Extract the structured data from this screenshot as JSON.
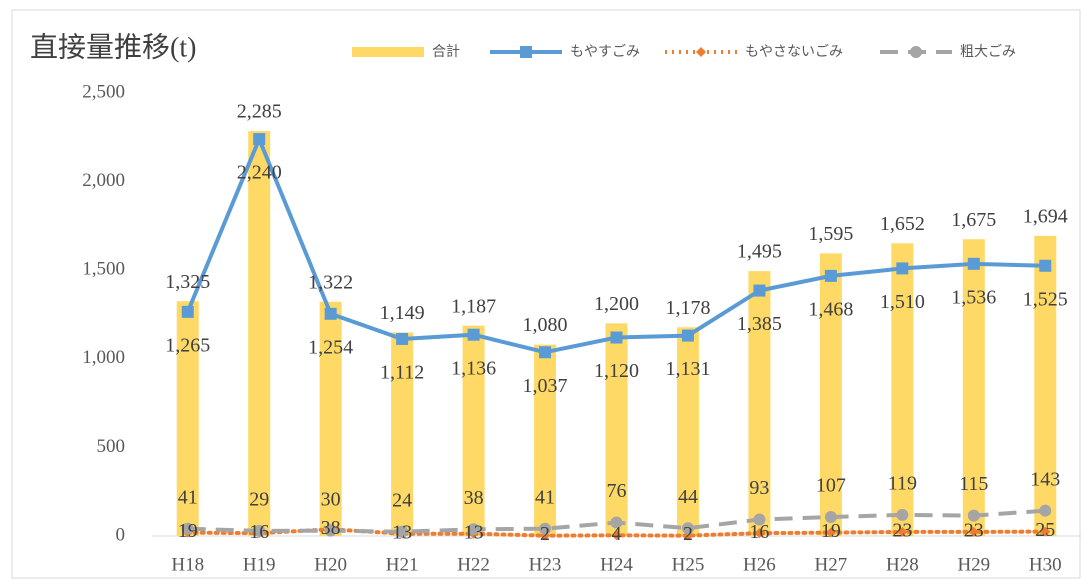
{
  "chart_data": {
    "type": "combo",
    "title": "直接量推移(t)",
    "categories": [
      "H18",
      "H19",
      "H20",
      "H21",
      "H22",
      "H23",
      "H24",
      "H25",
      "H26",
      "H27",
      "H28",
      "H29",
      "H30"
    ],
    "series": [
      {
        "name": "合計",
        "type": "bar",
        "color": "#FFD966",
        "values": [
          1325,
          2285,
          1322,
          1149,
          1187,
          1080,
          1200,
          1178,
          1495,
          1595,
          1652,
          1675,
          1694
        ],
        "value_labels": [
          "1,325",
          "2,285",
          "1,322",
          "1,149",
          "1,187",
          "1,080",
          "1,200",
          "1,178",
          "1,495",
          "1,595",
          "1,652",
          "1,675",
          "1,694"
        ]
      },
      {
        "name": "もやすごみ",
        "type": "line",
        "color": "#5B9BD5",
        "dash": "solid",
        "marker": "square",
        "values": [
          1265,
          2240,
          1254,
          1112,
          1136,
          1037,
          1120,
          1131,
          1385,
          1468,
          1510,
          1536,
          1525
        ],
        "value_labels": [
          "1,265",
          "2,240",
          "1,254",
          "1,112",
          "1,136",
          "1,037",
          "1,120",
          "1,131",
          "1,385",
          "1,468",
          "1,510",
          "1,536",
          "1,525"
        ]
      },
      {
        "name": "もやさないごみ",
        "type": "line",
        "color": "#ED7D31",
        "dash": "dotted",
        "marker": "diamond",
        "values": [
          19,
          16,
          38,
          13,
          13,
          2,
          4,
          2,
          16,
          19,
          23,
          23,
          25
        ]
      },
      {
        "name": "粗大ごみ",
        "type": "line",
        "color": "#A5A5A5",
        "dash": "dashed",
        "marker": "circle",
        "values": [
          41,
          29,
          30,
          24,
          38,
          41,
          76,
          44,
          93,
          107,
          119,
          115,
          143
        ]
      }
    ],
    "ylim": [
      0,
      2500
    ],
    "yticks": [
      0,
      500,
      {
        "value": 1000,
        "label": "1,000"
      },
      {
        "value": 1500,
        "label": "1,500"
      },
      {
        "value": 2000,
        "label": "2,000"
      },
      {
        "value": 2500,
        "label": "2,500"
      }
    ],
    "grid": false,
    "legend": "top"
  }
}
